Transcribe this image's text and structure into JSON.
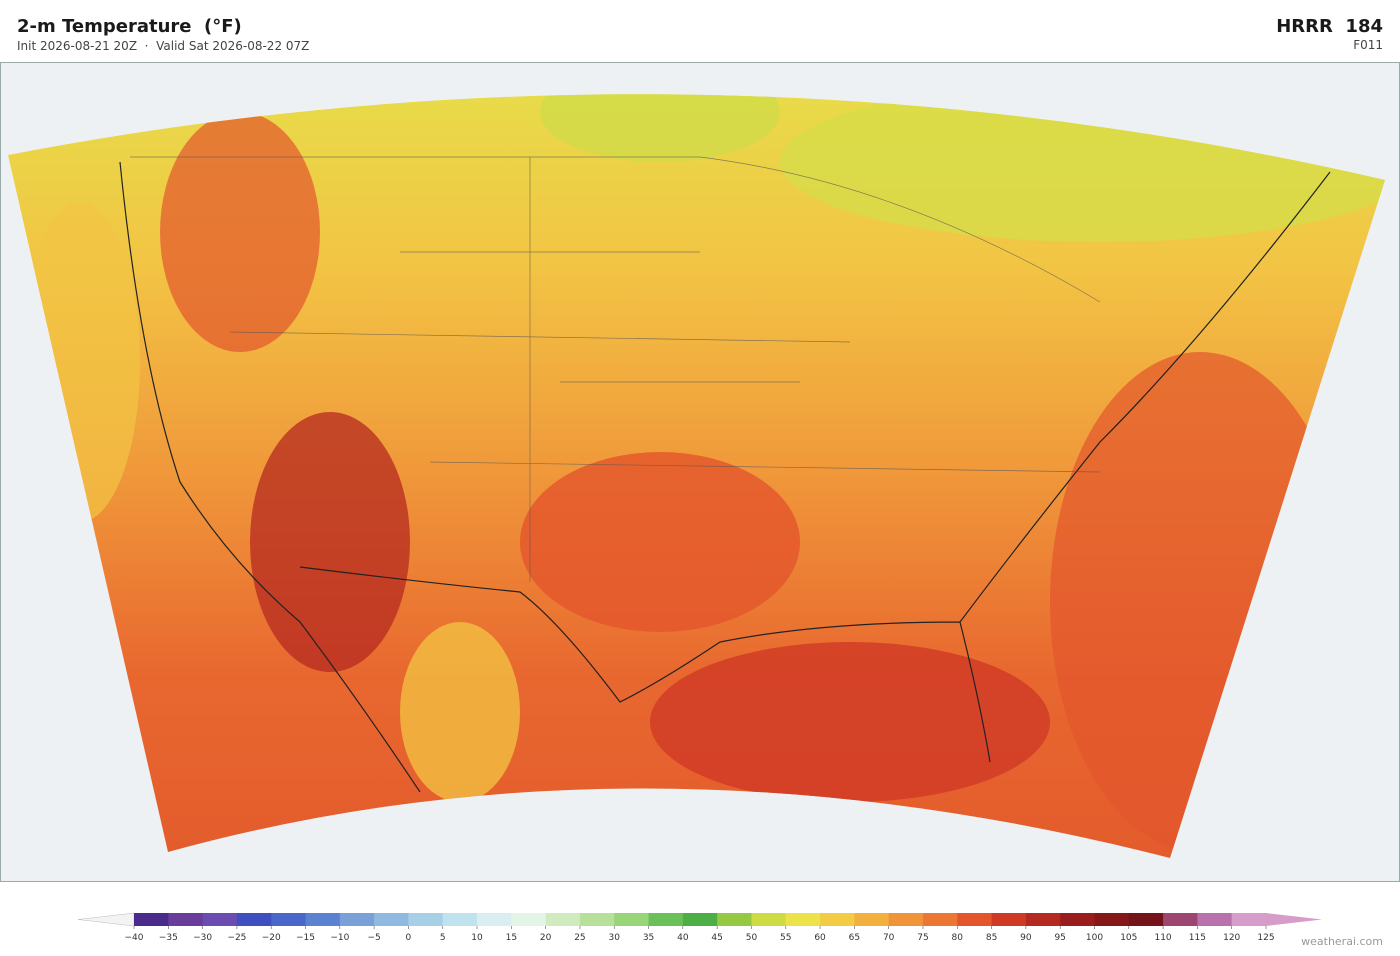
{
  "header": {
    "title": "2-m Temperature  (°F)",
    "subtitle": "Init 2026-08-21 20Z  ·  Valid Sat 2026-08-22 07Z",
    "model": "HRRR  184",
    "forecast_hour": "F011"
  },
  "colorbar": {
    "ticks": [
      {
        "value": -40,
        "label": "−40"
      },
      {
        "value": -35,
        "label": "−35"
      },
      {
        "value": -30,
        "label": "−30"
      },
      {
        "value": -25,
        "label": "−25"
      },
      {
        "value": -20,
        "label": "−20"
      },
      {
        "value": -15,
        "label": "−15"
      },
      {
        "value": -10,
        "label": "−10"
      },
      {
        "value": -5,
        "label": "−5"
      },
      0,
      5,
      10,
      15,
      20,
      25,
      30,
      35,
      40,
      45,
      50,
      55,
      60,
      65,
      70,
      75,
      80,
      85,
      90,
      95,
      100,
      105,
      110,
      115,
      120,
      125
    ],
    "colors": [
      "#4a2a8a",
      "#6a3d9a",
      "#6b4cb0",
      "#3f4fc0",
      "#4a66c8",
      "#5b82d0",
      "#79a1d8",
      "#8fb9de",
      "#a7d0e6",
      "#c0e2ee",
      "#d8eef0",
      "#e3f5e6",
      "#d0ebc0",
      "#b7e09a",
      "#98d478",
      "#6cc05a",
      "#4cae44",
      "#96c844",
      "#cddc44",
      "#ece34a",
      "#f3cc45",
      "#f2b03e",
      "#f0943a",
      "#ec7634",
      "#e3552c",
      "#cf3a25",
      "#b52a20",
      "#991d1c",
      "#861718",
      "#74141a",
      "#9c4670",
      "#b873ad",
      "#d69cca"
    ],
    "under_color": "#f3f3f3",
    "over_color": "#d69cca"
  },
  "watermark": "weatherai.com"
}
